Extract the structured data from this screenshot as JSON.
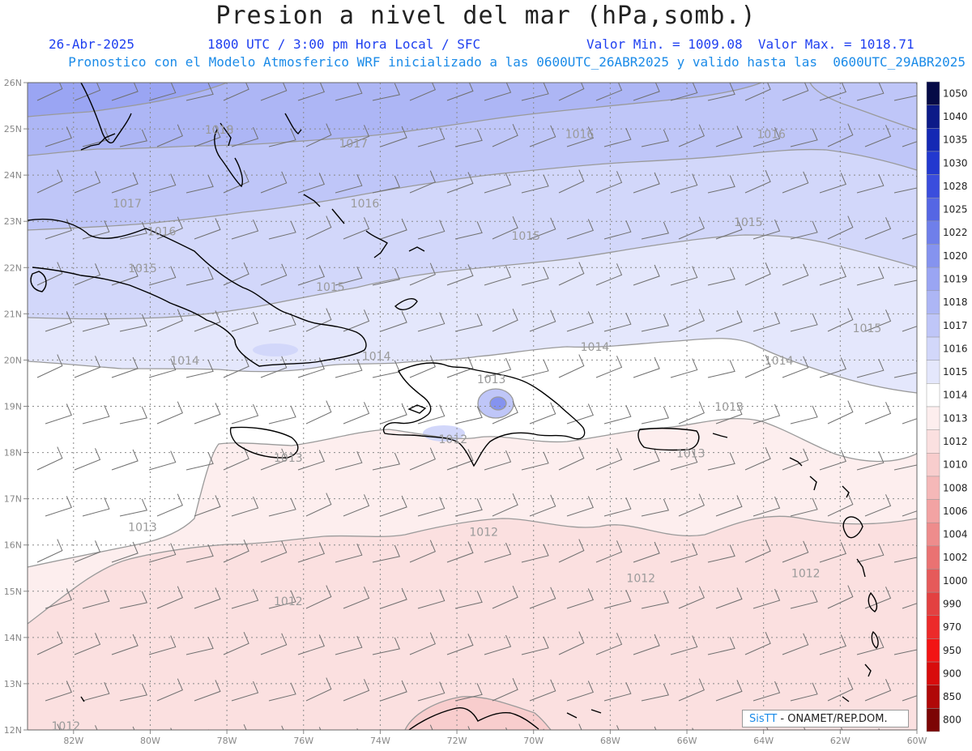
{
  "header": {
    "title": "Presion a nivel del mar (hPa,somb.)",
    "date": "26-Abr-2025",
    "time": "1800 UTC / 3:00 pm Hora Local / SFC",
    "min_max": "Valor Min. = 1009.08  Valor Max. = 1018.71",
    "forecast": "Pronostico con el Modelo Atmosferico WRF inicializado a las 0600UTC_26ABR2025 y valido hasta las  0600UTC_29ABR2025"
  },
  "map": {
    "lat_range": [
      12,
      26
    ],
    "lon_range": [
      -83.2,
      -60
    ],
    "lat_labels": [
      "26N",
      "25N",
      "24N",
      "23N",
      "22N",
      "21N",
      "20N",
      "19N",
      "18N",
      "17N",
      "16N",
      "15N",
      "14N",
      "13N",
      "12N"
    ],
    "lon_labels": [
      "82W",
      "80W",
      "78W",
      "76W",
      "74W",
      "72W",
      "70W",
      "68W",
      "66W",
      "64W",
      "62W",
      "60W"
    ],
    "contour_labels": [
      {
        "text": "1018",
        "lon": -78.2,
        "lat": 24.9
      },
      {
        "text": "1017",
        "lon": -74.7,
        "lat": 24.6
      },
      {
        "text": "1017",
        "lon": -80.6,
        "lat": 23.3
      },
      {
        "text": "1016",
        "lon": -74.4,
        "lat": 23.3
      },
      {
        "text": "1016",
        "lon": -68.8,
        "lat": 24.8
      },
      {
        "text": "1016",
        "lon": -63.8,
        "lat": 24.8
      },
      {
        "text": "1016",
        "lon": -79.7,
        "lat": 22.7
      },
      {
        "text": "1015",
        "lon": -80.2,
        "lat": 21.9
      },
      {
        "text": "1015",
        "lon": -75.3,
        "lat": 21.5
      },
      {
        "text": "1015",
        "lon": -70.2,
        "lat": 22.6
      },
      {
        "text": "1015",
        "lon": -64.4,
        "lat": 22.9
      },
      {
        "text": "1015",
        "lon": -61.3,
        "lat": 20.6
      },
      {
        "text": "1014",
        "lon": -79.1,
        "lat": 19.9
      },
      {
        "text": "1014",
        "lon": -74.1,
        "lat": 20.0
      },
      {
        "text": "1014",
        "lon": -68.4,
        "lat": 20.2
      },
      {
        "text": "1014",
        "lon": -63.6,
        "lat": 19.9
      },
      {
        "text": "1013",
        "lon": -71.1,
        "lat": 19.5
      },
      {
        "text": "1013",
        "lon": -64.9,
        "lat": 18.9
      },
      {
        "text": "1013",
        "lon": -76.4,
        "lat": 17.8
      },
      {
        "text": "1013",
        "lon": -65.9,
        "lat": 17.9
      },
      {
        "text": "1013",
        "lon": -80.2,
        "lat": 16.3
      },
      {
        "text": "1012",
        "lon": -72.1,
        "lat": 18.2
      },
      {
        "text": "1012",
        "lon": -71.3,
        "lat": 16.2
      },
      {
        "text": "1012",
        "lon": -76.4,
        "lat": 14.7
      },
      {
        "text": "1012",
        "lon": -67.2,
        "lat": 15.2
      },
      {
        "text": "1012",
        "lon": -62.9,
        "lat": 15.3
      },
      {
        "text": "1012",
        "lon": -82.2,
        "lat": 12.0
      }
    ]
  },
  "legend": {
    "levels": [
      {
        "label": "1050",
        "color": "#050a46"
      },
      {
        "label": "1040",
        "color": "#0c1a88"
      },
      {
        "label": "1035",
        "color": "#1428b4"
      },
      {
        "label": "1030",
        "color": "#2238cf"
      },
      {
        "label": "1028",
        "color": "#3a4ddd"
      },
      {
        "label": "1025",
        "color": "#5566e4"
      },
      {
        "label": "1022",
        "color": "#6f7fea"
      },
      {
        "label": "1020",
        "color": "#8593ef"
      },
      {
        "label": "1019",
        "color": "#9aa5f3"
      },
      {
        "label": "1018",
        "color": "#adb6f5"
      },
      {
        "label": "1017",
        "color": "#bfc6f8"
      },
      {
        "label": "1016",
        "color": "#d2d7fa"
      },
      {
        "label": "1015",
        "color": "#e4e7fc"
      },
      {
        "label": "1014",
        "color": "#ffffff"
      },
      {
        "label": "1013",
        "color": "#fdeeee"
      },
      {
        "label": "1012",
        "color": "#fbe0e0"
      },
      {
        "label": "1010",
        "color": "#f8cdcd"
      },
      {
        "label": "1008",
        "color": "#f5b8b8"
      },
      {
        "label": "1006",
        "color": "#f2a3a3"
      },
      {
        "label": "1004",
        "color": "#ee8c8c"
      },
      {
        "label": "1002",
        "color": "#ea7272"
      },
      {
        "label": "1000",
        "color": "#e65a5a"
      },
      {
        "label": "990",
        "color": "#e34141"
      },
      {
        "label": "970",
        "color": "#ec2a2a"
      },
      {
        "label": "950",
        "color": "#f21414"
      },
      {
        "label": "900",
        "color": "#d80c0c"
      },
      {
        "label": "850",
        "color": "#b00808"
      },
      {
        "label": "800",
        "color": "#7c0404"
      }
    ]
  },
  "credit": {
    "brand": "SisTT",
    "org": " - ONAMET/REP.DOM."
  }
}
